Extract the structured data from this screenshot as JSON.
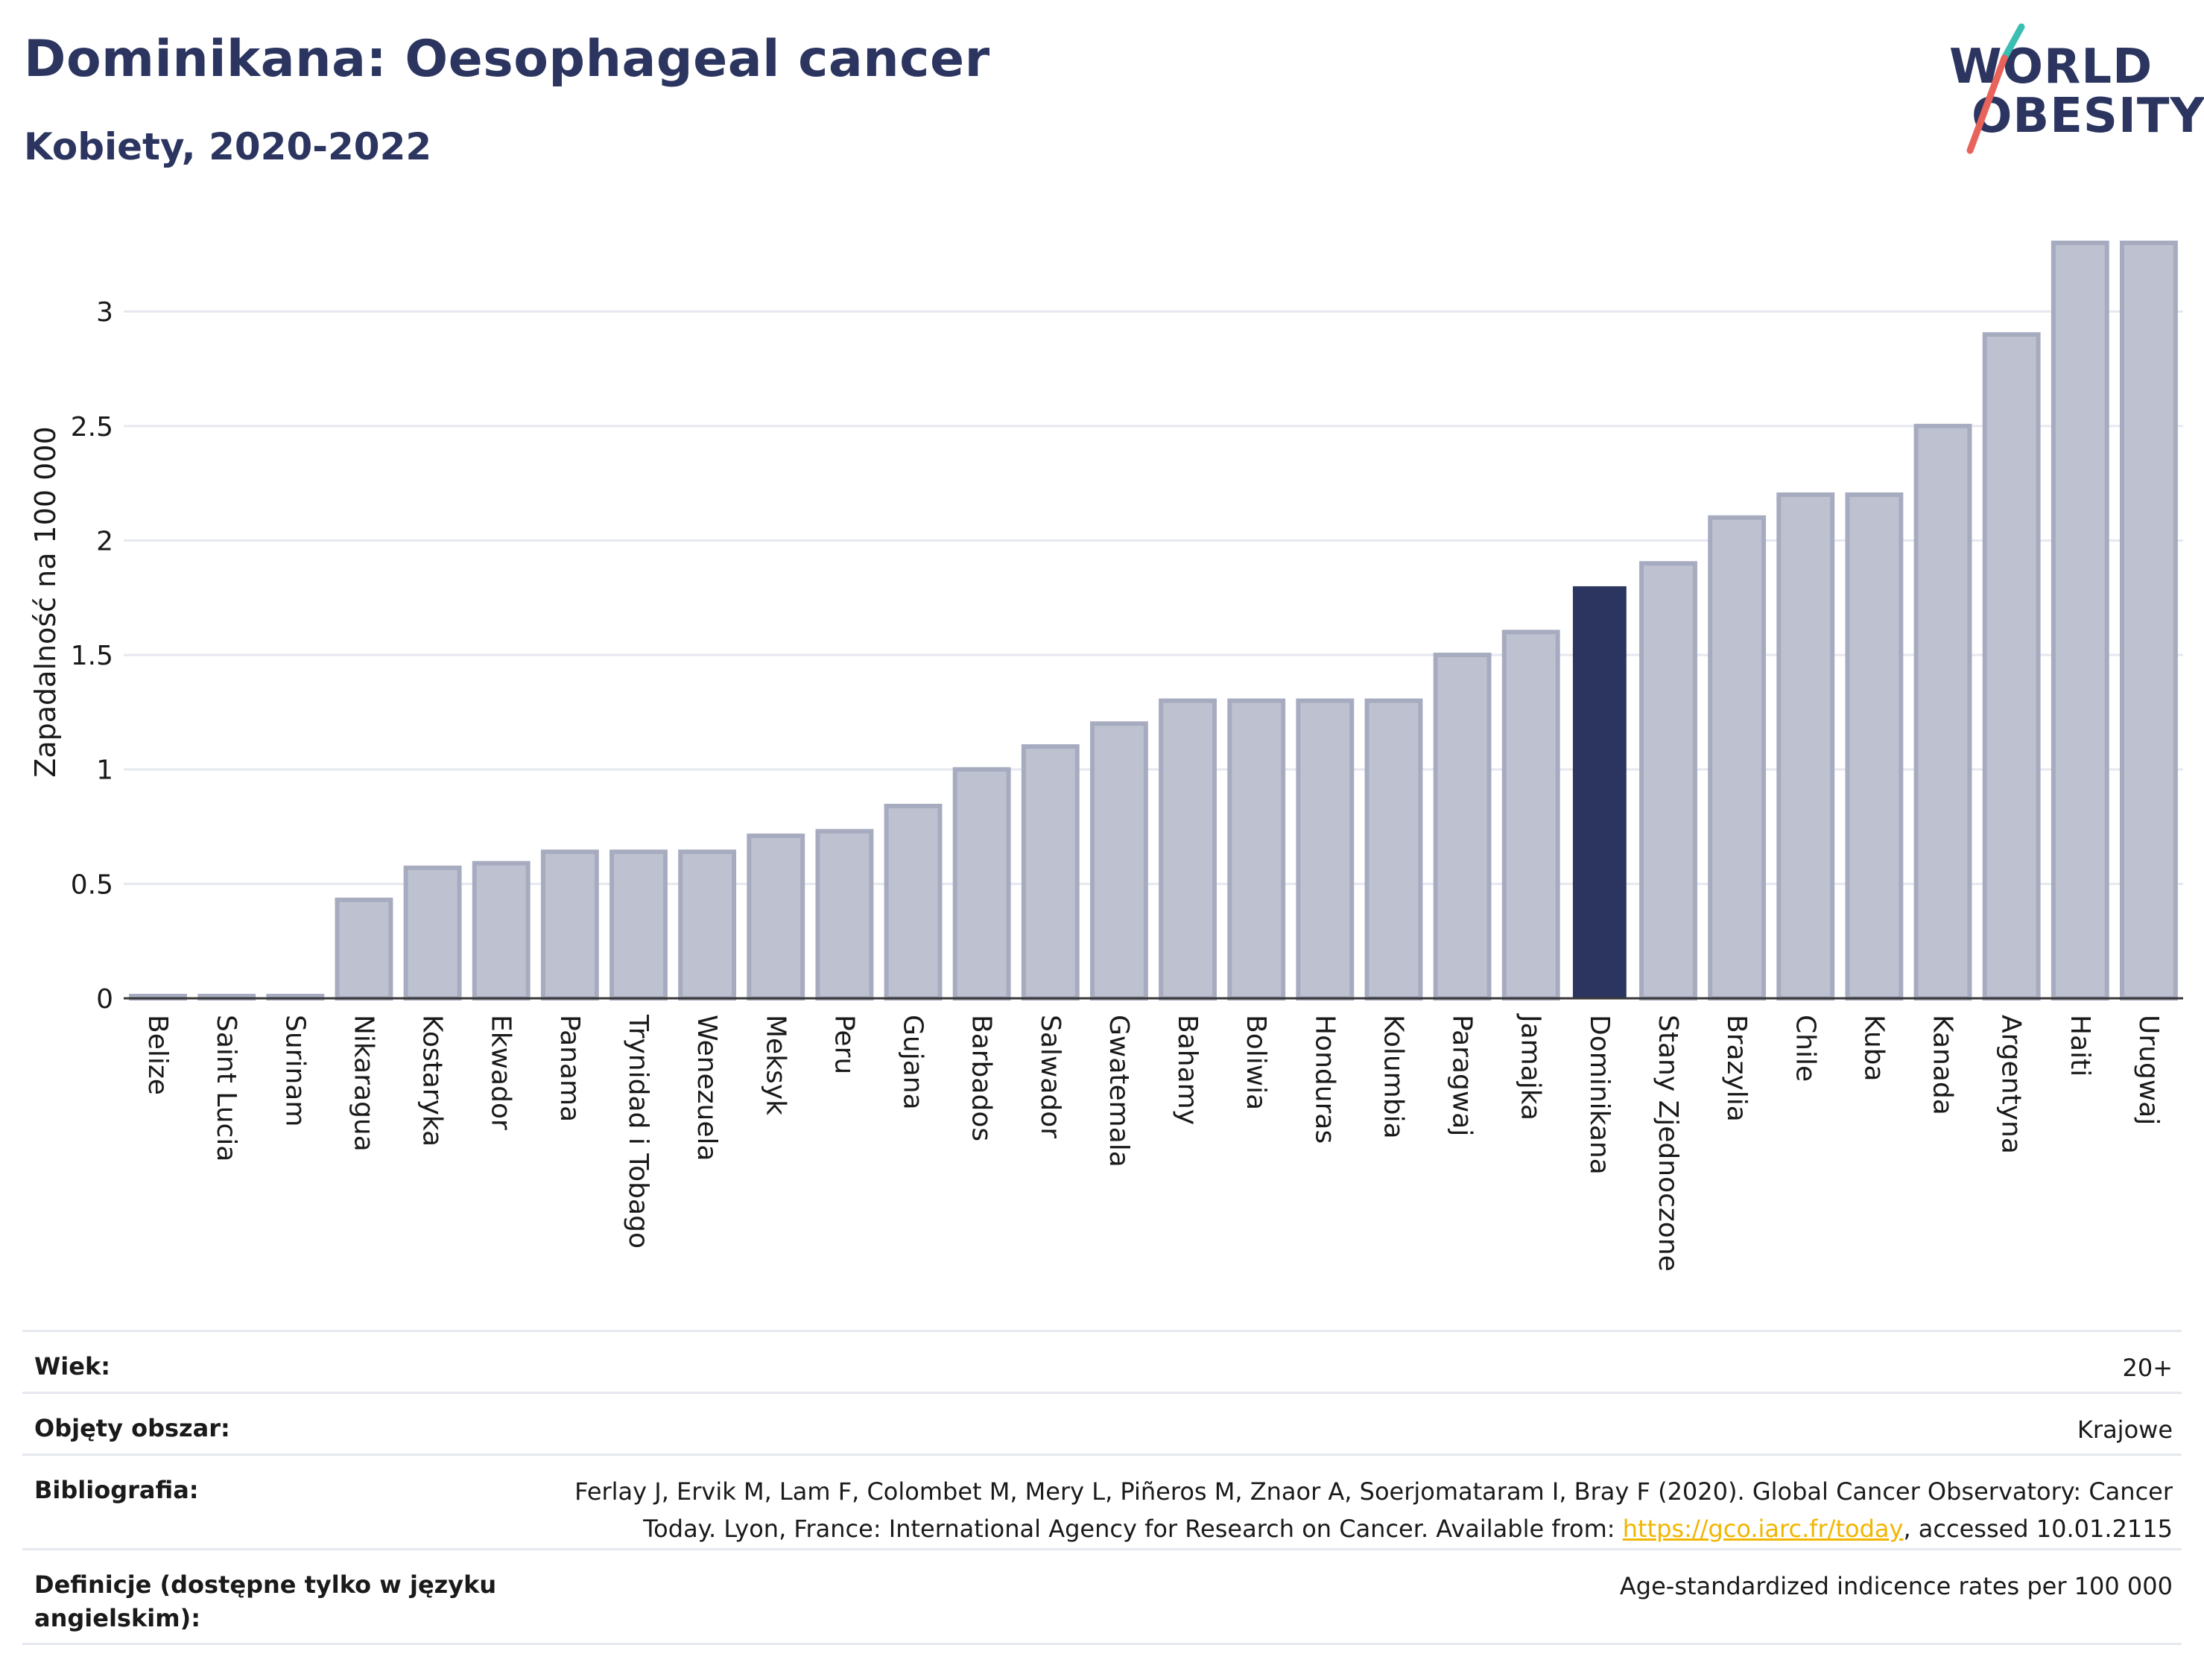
{
  "header": {
    "title": "Dominikana: Oesophageal cancer",
    "subtitle": "Kobiety, 2020-2022"
  },
  "logo": {
    "line1": "WORLD",
    "line2": "OBESITY"
  },
  "colors": {
    "highlight": "#2b3560",
    "bar_fill": "#bec2d0",
    "bar_stroke": "#a6abbf",
    "grid": "#e6e8f0",
    "logo_teal": "#3bbfb2",
    "logo_red": "#e8635a",
    "link": "#f2b600"
  },
  "chart_data": {
    "type": "bar",
    "categories": [
      "Belize",
      "Saint Lucia",
      "Surinam",
      "Nikaragua",
      "Kostaryka",
      "Ekwador",
      "Panama",
      "Trynidad i Tobago",
      "Wenezuela",
      "Meksyk",
      "Peru",
      "Gujana",
      "Barbados",
      "Salwador",
      "Gwatemala",
      "Bahamy",
      "Boliwia",
      "Honduras",
      "Kolumbia",
      "Paragwaj",
      "Jamajka",
      "Dominikana",
      "Stany Zjednoczone",
      "Brazylia",
      "Chile",
      "Kuba",
      "Kanada",
      "Argentyna",
      "Haiti",
      "Urugwaj"
    ],
    "values": [
      0.01,
      0.01,
      0.01,
      0.43,
      0.57,
      0.59,
      0.64,
      0.64,
      0.64,
      0.71,
      0.73,
      0.84,
      1.0,
      1.1,
      1.2,
      1.3,
      1.3,
      1.3,
      1.3,
      1.5,
      1.6,
      1.8,
      1.9,
      2.1,
      2.2,
      2.2,
      2.5,
      2.9,
      3.3,
      3.3
    ],
    "highlight": "Dominikana",
    "ylabel": "Zapadalność na 100 000",
    "ylim": [
      0,
      3.3
    ],
    "yticks": [
      0,
      0.5,
      1,
      1.5,
      2,
      2.5,
      3
    ],
    "ytick_labels": [
      "0",
      "0.5",
      "1",
      "1.5",
      "2",
      "2.5",
      "3"
    ],
    "grid": true
  },
  "meta": {
    "age_label": "Wiek:",
    "age_value": "20+",
    "area_label": "Objęty obszar:",
    "area_value": "Krajowe",
    "bib_label": "Bibliografia:",
    "bib_line1": "Ferlay J, Ervik M, Lam F, Colombet M, Mery L, Piñeros M, Znaor A, Soerjomataram I, Bray F (2020). Global Cancer Observatory: Cancer",
    "bib_line2_pre": "Today. Lyon, France: International Agency for Research on Cancer. Available from: ",
    "bib_link": "https://gco.iarc.fr/today",
    "bib_line2_post": ", accessed 10.01.2115",
    "def_label": "Definicje (dostępne tylko w języku angielskim):",
    "def_value": "Age-standardized indicence rates per 100 000"
  }
}
